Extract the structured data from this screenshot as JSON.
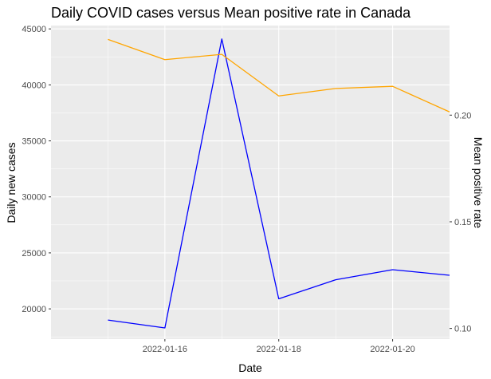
{
  "chart_data": {
    "type": "line",
    "title": "Daily COVID cases versus Mean positive rate in Canada",
    "xlabel": "Date",
    "ylabel": "Daily new cases",
    "y2label": "Mean positive rate",
    "x": [
      "2022-01-15",
      "2022-01-16",
      "2022-01-17",
      "2022-01-18",
      "2022-01-19",
      "2022-01-20",
      "2022-01-21"
    ],
    "xlim": [
      "2022-01-14",
      "2022-01-21"
    ],
    "ylim": [
      17300,
      45300
    ],
    "y2lim": [
      0.095,
      0.242
    ],
    "x_ticks": [
      "2022-01-16",
      "2022-01-18",
      "2022-01-20"
    ],
    "y_ticks": [
      "20000",
      "25000",
      "30000",
      "35000",
      "40000",
      "45000"
    ],
    "y2_ticks": [
      "0.10",
      "0.15",
      "0.20"
    ],
    "grid": true,
    "series": [
      {
        "axis": "left",
        "color": "#0000ff",
        "values": [
          19000,
          18300,
          44100,
          20900,
          22600,
          23500,
          23000
        ]
      },
      {
        "axis": "right",
        "color": "#ffa500",
        "values": [
          0.2355,
          0.226,
          0.2285,
          0.209,
          0.2125,
          0.2135,
          0.2015
        ]
      }
    ],
    "colors": {
      "panel": "#ebebeb",
      "grid": "#ffffff"
    }
  }
}
